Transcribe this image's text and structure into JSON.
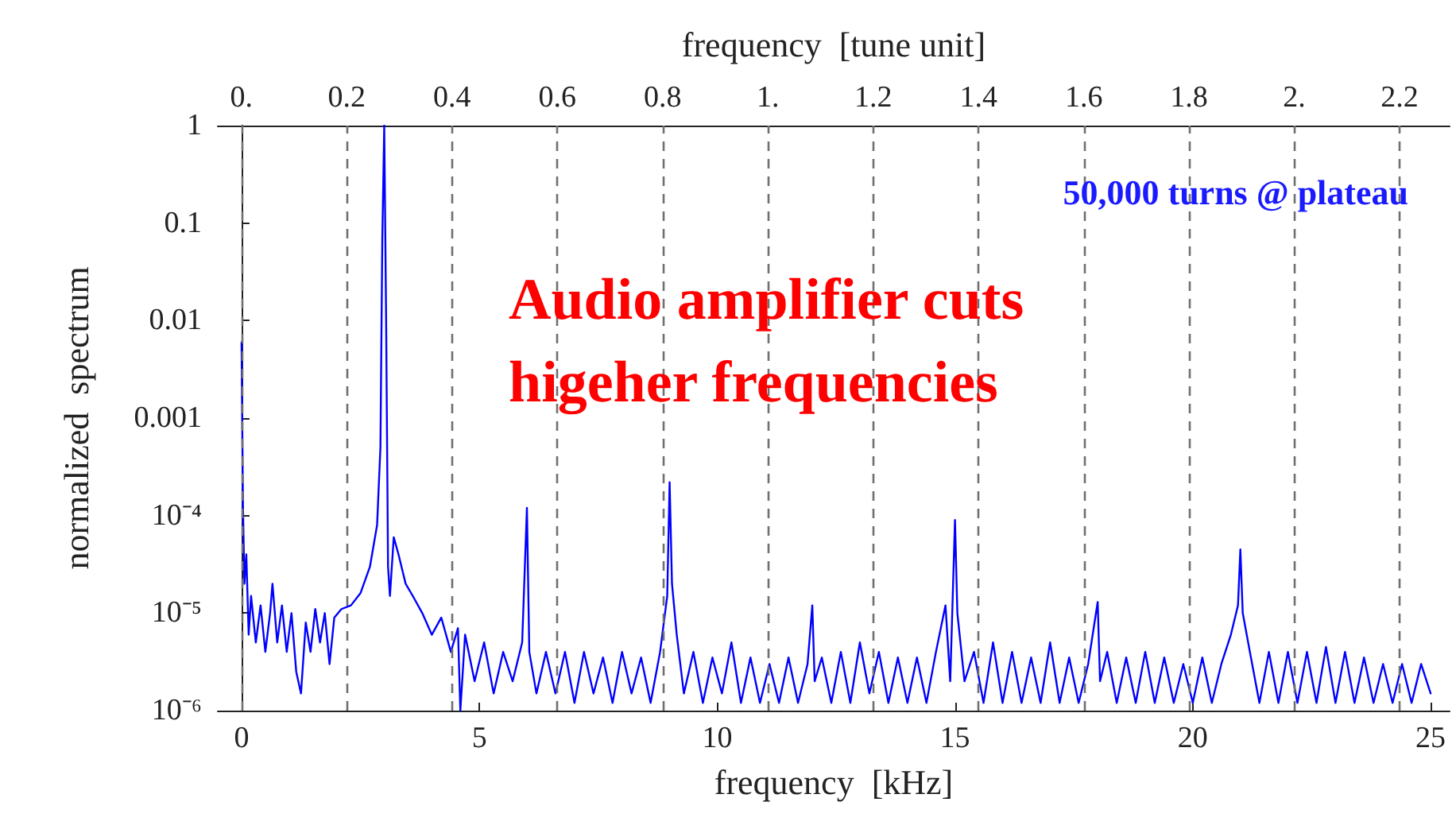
{
  "chart_data": {
    "type": "line",
    "xlabel": "frequency  [kHz]",
    "ylabel": "normalized  spectrum",
    "x2label": "frequency  [tune unit]",
    "annotations": [
      "50,000 turns @ plateau",
      "Audio amplifier cuts higeher frequencies"
    ],
    "log": "y",
    "grid": false,
    "marker": "none",
    "line_style": "solid",
    "xlim": [
      -0.5,
      25.4
    ],
    "xticks": [
      0,
      5,
      10,
      15,
      20,
      25
    ],
    "x2lim": [
      -0.045,
      2.295
    ],
    "x2ticks": [
      {
        "value": 0,
        "label": "0."
      },
      0.2,
      0.4,
      0.6,
      0.8,
      {
        "value": 1,
        "label": "1."
      },
      1.2,
      1.4,
      1.6,
      1.8,
      {
        "value": 2,
        "label": "2."
      },
      2.2
    ],
    "ylim": [
      1e-06,
      1
    ],
    "yticks": [
      {
        "value": 1e-06,
        "label": "10⁻⁶"
      },
      {
        "value": 1e-05,
        "label": "10⁻⁵"
      },
      {
        "value": 0.0001,
        "label": "10⁻⁴"
      },
      0.001,
      0.01,
      0.1,
      1
    ],
    "ref_lines": [
      {
        "axis": "x2",
        "value": 0,
        "color": "#707070",
        "line_style": "dashed"
      },
      {
        "axis": "x2",
        "value": 0.2,
        "color": "#707070",
        "line_style": "dashed"
      },
      {
        "axis": "x2",
        "value": 0.4,
        "color": "#707070",
        "line_style": "dashed"
      },
      {
        "axis": "x2",
        "value": 0.6,
        "color": "#707070",
        "line_style": "dashed"
      },
      {
        "axis": "x2",
        "value": 0.8,
        "color": "#707070",
        "line_style": "dashed"
      },
      {
        "axis": "x2",
        "value": 1,
        "color": "#707070",
        "line_style": "dashed"
      },
      {
        "axis": "x2",
        "value": 1.2,
        "color": "#707070",
        "line_style": "dashed"
      },
      {
        "axis": "x2",
        "value": 1.4,
        "color": "#707070",
        "line_style": "dashed"
      },
      {
        "axis": "x2",
        "value": 1.6,
        "color": "#707070",
        "line_style": "dashed"
      },
      {
        "axis": "x2",
        "value": 1.8,
        "color": "#707070",
        "line_style": "dashed"
      },
      {
        "axis": "x2",
        "value": 2,
        "color": "#707070",
        "line_style": "dashed"
      },
      {
        "axis": "x2",
        "value": 2.2,
        "color": "#707070",
        "line_style": "dashed"
      }
    ],
    "series": [
      {
        "color": "#0000ff",
        "x": [
          0,
          0.03,
          0.06,
          0.1,
          0.15,
          0.2,
          0.3,
          0.4,
          0.5,
          0.6,
          0.65,
          0.75,
          0.85,
          0.95,
          1.05,
          1.15,
          1.25,
          1.35,
          1.45,
          1.55,
          1.65,
          1.75,
          1.85,
          1.95,
          2.1,
          2.3,
          2.5,
          2.7,
          2.85,
          2.92,
          2.96,
          3.0,
          3.04,
          3.08,
          3.12,
          3.2,
          3.3,
          3.45,
          3.6,
          3.8,
          4.0,
          4.2,
          4.4,
          4.55,
          4.6,
          4.7,
          4.9,
          5.1,
          5.3,
          5.5,
          5.7,
          5.9,
          6.0,
          6.05,
          6.2,
          6.4,
          6.6,
          6.8,
          7.0,
          7.2,
          7.4,
          7.6,
          7.8,
          8.0,
          8.2,
          8.4,
          8.6,
          8.8,
          8.95,
          9.0,
          9.05,
          9.15,
          9.3,
          9.5,
          9.7,
          9.9,
          10.1,
          10.3,
          10.5,
          10.7,
          10.9,
          11.1,
          11.3,
          11.5,
          11.7,
          11.9,
          12.0,
          12.05,
          12.2,
          12.4,
          12.6,
          12.8,
          13.0,
          13.2,
          13.4,
          13.6,
          13.8,
          14.0,
          14.2,
          14.4,
          14.6,
          14.8,
          14.9,
          15.0,
          15.05,
          15.2,
          15.4,
          15.6,
          15.8,
          16.0,
          16.2,
          16.4,
          16.6,
          16.8,
          17.0,
          17.2,
          17.4,
          17.6,
          17.8,
          18.0,
          18.05,
          18.2,
          18.4,
          18.6,
          18.8,
          19.0,
          19.2,
          19.4,
          19.6,
          19.8,
          20.0,
          20.2,
          20.4,
          20.6,
          20.8,
          20.95,
          21.0,
          21.05,
          21.2,
          21.4,
          21.6,
          21.8,
          22.0,
          22.2,
          22.4,
          22.6,
          22.8,
          23.0,
          23.2,
          23.4,
          23.6,
          23.8,
          24.0,
          24.2,
          24.4,
          24.6,
          24.8,
          25.0
        ],
        "values": [
          0.006,
          0.00012,
          2e-05,
          4e-05,
          6e-06,
          1.5e-05,
          5e-06,
          1.2e-05,
          4e-06,
          1e-05,
          2e-05,
          5e-06,
          1.2e-05,
          4e-06,
          1e-05,
          2.5e-06,
          1.5e-06,
          8e-06,
          4e-06,
          1.1e-05,
          5e-06,
          1e-05,
          3e-06,
          9e-06,
          1.1e-05,
          1.2e-05,
          1.6e-05,
          3e-05,
          8e-05,
          0.0005,
          0.07,
          1,
          0.01,
          3e-05,
          1.5e-05,
          6e-05,
          4e-05,
          2e-05,
          1.5e-05,
          1e-05,
          6e-06,
          9e-06,
          4e-06,
          7e-06,
          1e-06,
          6e-06,
          2e-06,
          5e-06,
          1.5e-06,
          4e-06,
          2e-06,
          5e-06,
          0.00012,
          4e-06,
          1.5e-06,
          4e-06,
          1.5e-06,
          4e-06,
          1.2e-06,
          4e-06,
          1.5e-06,
          3.5e-06,
          1.2e-06,
          4e-06,
          1.5e-06,
          3.5e-06,
          1.2e-06,
          4e-06,
          1.5e-05,
          0.00022,
          2e-05,
          6e-06,
          1.5e-06,
          4e-06,
          1.2e-06,
          3.5e-06,
          1.5e-06,
          5e-06,
          1.2e-06,
          3.5e-06,
          1.2e-06,
          3e-06,
          1.2e-06,
          3.5e-06,
          1.2e-06,
          3e-06,
          1.2e-05,
          2e-06,
          3.5e-06,
          1.2e-06,
          4e-06,
          1.2e-06,
          5e-06,
          1.5e-06,
          4e-06,
          1.2e-06,
          3.5e-06,
          1.2e-06,
          3.5e-06,
          1.2e-06,
          4e-06,
          1.2e-05,
          2e-06,
          9e-05,
          1e-05,
          2e-06,
          4e-06,
          1.2e-06,
          5e-06,
          1.2e-06,
          4e-06,
          1.2e-06,
          3.5e-06,
          1.2e-06,
          5e-06,
          1.2e-06,
          3.5e-06,
          1.2e-06,
          3e-06,
          1.3e-05,
          2e-06,
          4e-06,
          1.2e-06,
          3.5e-06,
          1.2e-06,
          4e-06,
          1.2e-06,
          3.5e-06,
          1.2e-06,
          3e-06,
          1.2e-06,
          3.5e-06,
          1.2e-06,
          3e-06,
          6e-06,
          1.2e-05,
          4.5e-05,
          1e-05,
          4e-06,
          1.2e-06,
          4e-06,
          1.2e-06,
          4e-06,
          1.2e-06,
          4e-06,
          1.2e-06,
          4.5e-06,
          1.2e-06,
          4e-06,
          1.2e-06,
          3.5e-06,
          1.2e-06,
          3e-06,
          1.2e-06,
          3e-06,
          1.2e-06,
          3e-06,
          1.5e-06
        ]
      }
    ]
  }
}
